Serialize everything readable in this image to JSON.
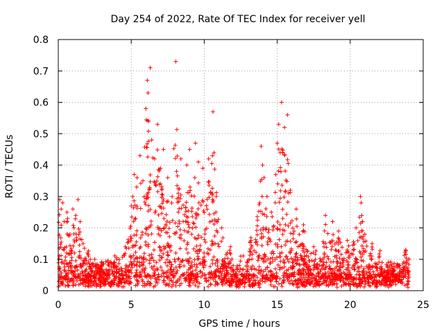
{
  "chart_data": {
    "type": "scatter",
    "title": "Day 254 of 2022, Rate Of TEC Index for receiver yell",
    "xlabel": "GPS time / hours",
    "ylabel": "ROTI / TECUs",
    "xlim": [
      0,
      25
    ],
    "ylim": [
      0,
      0.8
    ],
    "xticks": [
      0,
      5,
      10,
      15,
      20,
      25
    ],
    "yticks": [
      0,
      0.1,
      0.2,
      0.3,
      0.4,
      0.5,
      0.6,
      0.7,
      0.8
    ],
    "xtick_labels": [
      "0",
      "5",
      "10",
      "15",
      "20",
      "25"
    ],
    "ytick_labels": [
      "0",
      "0.1",
      "0.2",
      "0.3",
      "0.4",
      "0.5",
      "0.6",
      "0.7",
      "0.8"
    ],
    "grid": true,
    "marker": "+",
    "color": "#ff0000",
    "series": [
      {
        "points": [
          [
            0.1,
            0.29
          ],
          [
            0.2,
            0.26
          ],
          [
            0.3,
            0.28
          ],
          [
            0.4,
            0.22
          ],
          [
            0.6,
            0.25
          ],
          [
            0.8,
            0.18
          ],
          [
            1.0,
            0.26
          ],
          [
            1.2,
            0.24
          ],
          [
            1.35,
            0.29
          ],
          [
            1.5,
            0.22
          ],
          [
            1.7,
            0.15
          ],
          [
            2.0,
            0.12
          ],
          [
            2.5,
            0.1
          ],
          [
            3.0,
            0.08
          ],
          [
            3.5,
            0.09
          ],
          [
            4.0,
            0.1
          ],
          [
            4.6,
            0.14
          ],
          [
            5.0,
            0.27
          ],
          [
            5.1,
            0.3
          ],
          [
            5.2,
            0.37
          ],
          [
            5.4,
            0.36
          ],
          [
            5.6,
            0.43
          ],
          [
            5.8,
            0.35
          ],
          [
            6.0,
            0.58
          ],
          [
            6.1,
            0.67
          ],
          [
            6.15,
            0.63
          ],
          [
            6.2,
            0.54
          ],
          [
            6.3,
            0.71
          ],
          [
            6.4,
            0.48
          ],
          [
            6.6,
            0.42
          ],
          [
            6.8,
            0.53
          ],
          [
            7.0,
            0.39
          ],
          [
            7.2,
            0.45
          ],
          [
            7.5,
            0.36
          ],
          [
            7.8,
            0.3
          ],
          [
            8.05,
            0.73
          ],
          [
            8.1,
            0.38
          ],
          [
            8.4,
            0.42
          ],
          [
            8.8,
            0.4
          ],
          [
            9.0,
            0.45
          ],
          [
            9.4,
            0.47
          ],
          [
            9.6,
            0.41
          ],
          [
            9.9,
            0.39
          ],
          [
            10.3,
            0.42
          ],
          [
            10.6,
            0.57
          ],
          [
            10.8,
            0.25
          ],
          [
            11.2,
            0.2
          ],
          [
            11.8,
            0.14
          ],
          [
            12.5,
            0.11
          ],
          [
            13.2,
            0.16
          ],
          [
            13.8,
            0.28
          ],
          [
            13.9,
            0.46
          ],
          [
            14.0,
            0.4
          ],
          [
            14.1,
            0.36
          ],
          [
            14.3,
            0.3
          ],
          [
            14.6,
            0.25
          ],
          [
            14.9,
            0.37
          ],
          [
            15.0,
            0.47
          ],
          [
            15.1,
            0.53
          ],
          [
            15.2,
            0.44
          ],
          [
            15.3,
            0.6
          ],
          [
            15.5,
            0.52
          ],
          [
            15.7,
            0.56
          ],
          [
            15.9,
            0.32
          ],
          [
            16.3,
            0.26
          ],
          [
            16.8,
            0.21
          ],
          [
            17.5,
            0.14
          ],
          [
            18.3,
            0.24
          ],
          [
            18.8,
            0.22
          ],
          [
            19.2,
            0.19
          ],
          [
            19.8,
            0.16
          ],
          [
            20.4,
            0.2
          ],
          [
            20.7,
            0.3
          ],
          [
            20.75,
            0.28
          ],
          [
            21.0,
            0.18
          ],
          [
            21.5,
            0.15
          ],
          [
            22.0,
            0.11
          ],
          [
            22.6,
            0.09
          ],
          [
            23.2,
            0.08
          ],
          [
            23.8,
            0.13
          ],
          [
            24.0,
            0.06
          ]
        ]
      }
    ]
  }
}
